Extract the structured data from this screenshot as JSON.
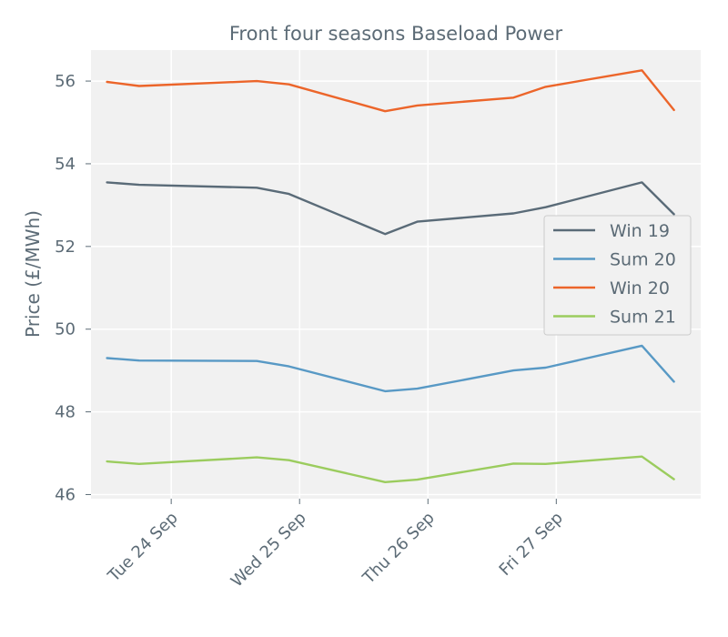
{
  "chart_data": {
    "type": "line",
    "title": "Front four seasons Baseload Power",
    "xlabel": "",
    "ylabel": "Price (£/MWh)",
    "x": [
      "2019-09-23T12:00",
      "2019-09-23T18:00",
      "2019-09-24T16:00",
      "2019-09-24T22:00",
      "2019-09-25T16:00",
      "2019-09-25T22:00",
      "2019-09-26T16:00",
      "2019-09-26T22:00",
      "2019-09-27T16:00",
      "2019-09-27T22:00"
    ],
    "xticks": [
      "Tue 24 Sep",
      "Wed 25 Sep",
      "Thu 26 Sep",
      "Fri 27 Sep"
    ],
    "xlim": [
      "2019-09-23T09:00",
      "2019-09-28T03:00"
    ],
    "ylim": [
      45.9,
      56.75
    ],
    "yticks": [
      46,
      48,
      50,
      52,
      54,
      56
    ],
    "grid": true,
    "legend_position": "center-right",
    "series": [
      {
        "name": "Win 19",
        "color": "#5a6b78",
        "values": [
          53.55,
          53.49,
          53.42,
          53.27,
          52.3,
          52.6,
          52.8,
          52.95,
          53.55,
          52.78
        ]
      },
      {
        "name": "Sum 20",
        "color": "#5899c5",
        "values": [
          49.3,
          49.24,
          49.23,
          49.1,
          48.5,
          48.56,
          49.0,
          49.07,
          49.6,
          48.73
        ]
      },
      {
        "name": "Win 20",
        "color": "#ec652a",
        "values": [
          55.98,
          55.88,
          56.0,
          55.92,
          55.27,
          55.41,
          55.6,
          55.86,
          56.26,
          55.3
        ]
      },
      {
        "name": "Sum 21",
        "color": "#9bcc5e",
        "values": [
          46.8,
          46.74,
          46.9,
          46.83,
          46.3,
          46.36,
          46.75,
          46.74,
          46.92,
          46.37
        ]
      }
    ]
  }
}
